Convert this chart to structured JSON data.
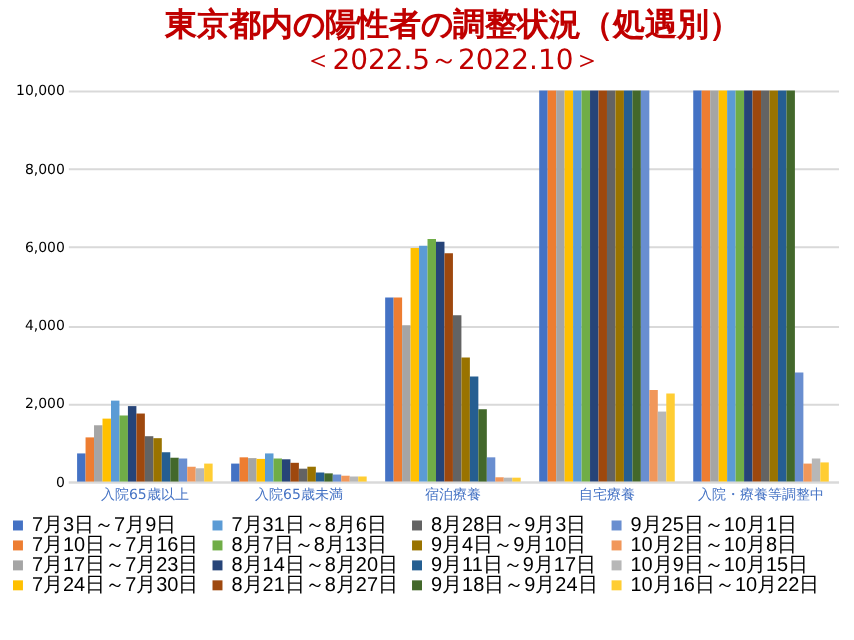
{
  "chart_data": {
    "type": "bar",
    "title": "東京都内の陽性者の調整状況（処遇別）",
    "subtitle": "＜2022.5～2022.10＞",
    "categories": [
      "入院65歳以上",
      "入院65歳未満",
      "宿泊療養",
      "自宅療養",
      "入院・療養等調整中"
    ],
    "ylim": [
      0,
      10000
    ],
    "yticks": [
      0,
      {
        "value": 2000,
        "label": "2,000"
      },
      {
        "value": 4000,
        "label": "4,000"
      },
      {
        "value": 6000,
        "label": "6,000"
      },
      {
        "value": 8000,
        "label": "8,000"
      },
      {
        "value": 10000,
        "label": "10,000"
      }
    ],
    "grid": "y",
    "legend": "bottom",
    "series": [
      {
        "name": "7月3日～7月9日",
        "color": "#4472c4",
        "values": [
          720,
          460,
          4710,
          10000,
          10000
        ]
      },
      {
        "name": "7月10日～7月16日",
        "color": "#ed7d31",
        "values": [
          1130,
          620,
          4710,
          10000,
          10000
        ]
      },
      {
        "name": "7月17日～7月23日",
        "color": "#a5a5a5",
        "values": [
          1440,
          600,
          4000,
          10000,
          10000
        ]
      },
      {
        "name": "7月24日～7月30日",
        "color": "#ffc000",
        "values": [
          1610,
          580,
          5970,
          10000,
          10000
        ]
      },
      {
        "name": "7月31日～8月6日",
        "color": "#5b9bd5",
        "values": [
          2070,
          720,
          6030,
          10000,
          10000
        ]
      },
      {
        "name": "8月7日～8月13日",
        "color": "#70ad47",
        "values": [
          1690,
          590,
          6200,
          10000,
          10000
        ]
      },
      {
        "name": "8月14日～8月20日",
        "color": "#264478",
        "values": [
          1930,
          570,
          6130,
          10000,
          10000
        ]
      },
      {
        "name": "8月21日～8月27日",
        "color": "#9e480e",
        "values": [
          1740,
          480,
          5840,
          10000,
          10000
        ]
      },
      {
        "name": "8月28日～9月3日",
        "color": "#636363",
        "values": [
          1160,
          330,
          4250,
          10000,
          10000
        ]
      },
      {
        "name": "9月4日～9月10日",
        "color": "#997300",
        "values": [
          1110,
          380,
          3170,
          10000,
          10000
        ]
      },
      {
        "name": "9月11日～9月17日",
        "color": "#255e91",
        "values": [
          750,
          230,
          2690,
          10000,
          10000
        ]
      },
      {
        "name": "9月18日～9月24日",
        "color": "#43682b",
        "values": [
          610,
          210,
          1850,
          10000,
          10000
        ]
      },
      {
        "name": "9月25日～10月1日",
        "color": "#698ed0",
        "values": [
          590,
          180,
          620,
          10000,
          2790
        ]
      },
      {
        "name": "10月2日～10月8日",
        "color": "#f1975a",
        "values": [
          380,
          150,
          110,
          2340,
          460
        ]
      },
      {
        "name": "10月9日～10月15日",
        "color": "#b7b7b7",
        "values": [
          340,
          130,
          100,
          1790,
          590
        ]
      },
      {
        "name": "10月16日～10月22日",
        "color": "#ffcd33",
        "values": [
          460,
          130,
          100,
          2250,
          490
        ]
      }
    ]
  }
}
